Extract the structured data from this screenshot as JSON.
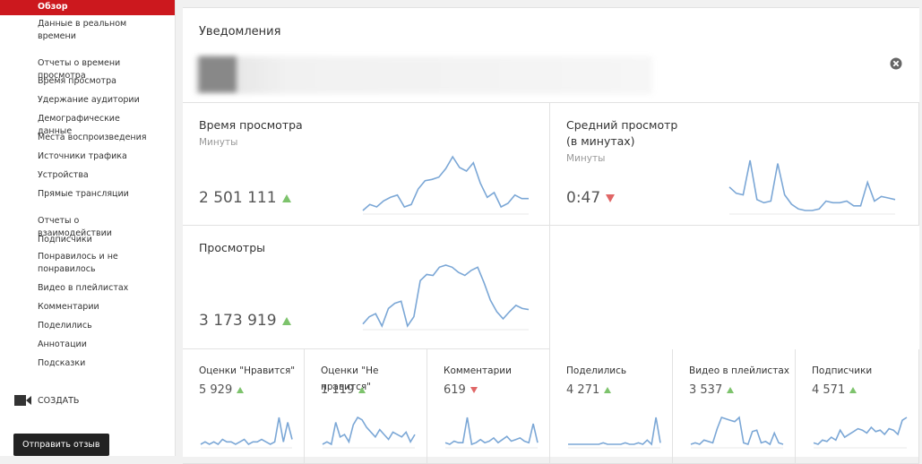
{
  "sidebar": {
    "items": [
      "Обзор",
      "Данные в реальном времени",
      "Отчеты о времени просмотра",
      "Время просмотра",
      "Удержание аудитории",
      "Демографические данные",
      "Места воспроизведения",
      "Источники трафика",
      "Устройства",
      "Прямые трансляции",
      "Отчеты о взаимодействии",
      "Подписчики",
      "Понравилось и не понравилось",
      "Видео в плейлистах",
      "Комментарии",
      "Поделились",
      "Аннотации",
      "Подсказки"
    ],
    "selected": 0,
    "create": "СОЗДАТЬ",
    "feedback_button": "Отправить отзыв"
  },
  "notifications": {
    "title": "Уведомления"
  },
  "metrics": [
    {
      "title": "Время просмотра",
      "unit": "Минуты",
      "value": "2 501 111",
      "direction": "up",
      "sparkline": [
        17,
        22,
        20,
        25,
        28,
        30,
        20,
        22,
        35,
        42,
        43,
        45,
        52,
        62,
        53,
        50,
        57,
        40,
        28,
        32,
        20,
        23,
        30,
        27,
        27
      ]
    },
    {
      "title": "Средний просмотр (в минутах)",
      "unit": "Минуты",
      "value": "0:47",
      "direction": "down",
      "sparkline": [
        45,
        41,
        40,
        62,
        37,
        35,
        36,
        60,
        40,
        34,
        31,
        30,
        30,
        31,
        36,
        35,
        35,
        36,
        33,
        33,
        48,
        36,
        39,
        38,
        37
      ]
    },
    {
      "title": "Просмотры",
      "value": "3 173 919",
      "direction": "up",
      "sparkline": [
        15,
        22,
        25,
        13,
        30,
        35,
        37,
        13,
        22,
        57,
        63,
        62,
        70,
        72,
        70,
        65,
        62,
        67,
        70,
        55,
        38,
        27,
        20,
        27,
        33,
        30,
        29
      ]
    }
  ],
  "small_metrics": [
    {
      "title": "Оценки \"Нравится\"",
      "value": "5 929",
      "direction": "up",
      "sparkline": [
        3,
        4,
        3,
        4,
        3,
        5,
        4,
        4,
        3,
        4,
        5,
        3,
        4,
        4,
        5,
        4,
        3,
        4,
        14,
        4,
        12,
        5
      ]
    },
    {
      "title": "Оценки \"Не нравится\"",
      "value": "1 119",
      "direction": "up",
      "sparkline": [
        5,
        6,
        5,
        14,
        8,
        9,
        6,
        13,
        16,
        15,
        12,
        10,
        8,
        11,
        9,
        7,
        10,
        9,
        8,
        10,
        6,
        9
      ]
    },
    {
      "title": "Комментарии",
      "value": "619",
      "direction": "down",
      "sparkline": [
        6,
        5,
        7,
        6,
        6,
        22,
        5,
        6,
        8,
        6,
        7,
        9,
        6,
        8,
        10,
        7,
        8,
        9,
        7,
        6,
        18,
        6
      ]
    },
    {
      "title": "Поделились",
      "value": "4 271",
      "direction": "up",
      "sparkline": [
        3,
        3,
        3,
        3,
        3,
        3,
        3,
        3,
        4,
        3,
        3,
        3,
        3,
        4,
        3,
        3,
        4,
        3,
        6,
        3,
        22,
        4
      ]
    },
    {
      "title": "Видео в плейлистах",
      "value": "3 537",
      "direction": "up",
      "sparkline": [
        5,
        6,
        5,
        8,
        7,
        6,
        16,
        24,
        23,
        22,
        21,
        24,
        6,
        5,
        14,
        15,
        6,
        7,
        5,
        13,
        6,
        5
      ]
    },
    {
      "title": "Подписчики",
      "value": "4 571",
      "direction": "up",
      "sparkline": [
        8,
        7,
        10,
        9,
        12,
        10,
        17,
        12,
        14,
        16,
        18,
        17,
        15,
        19,
        16,
        17,
        14,
        18,
        17,
        14,
        24,
        26
      ]
    }
  ]
}
